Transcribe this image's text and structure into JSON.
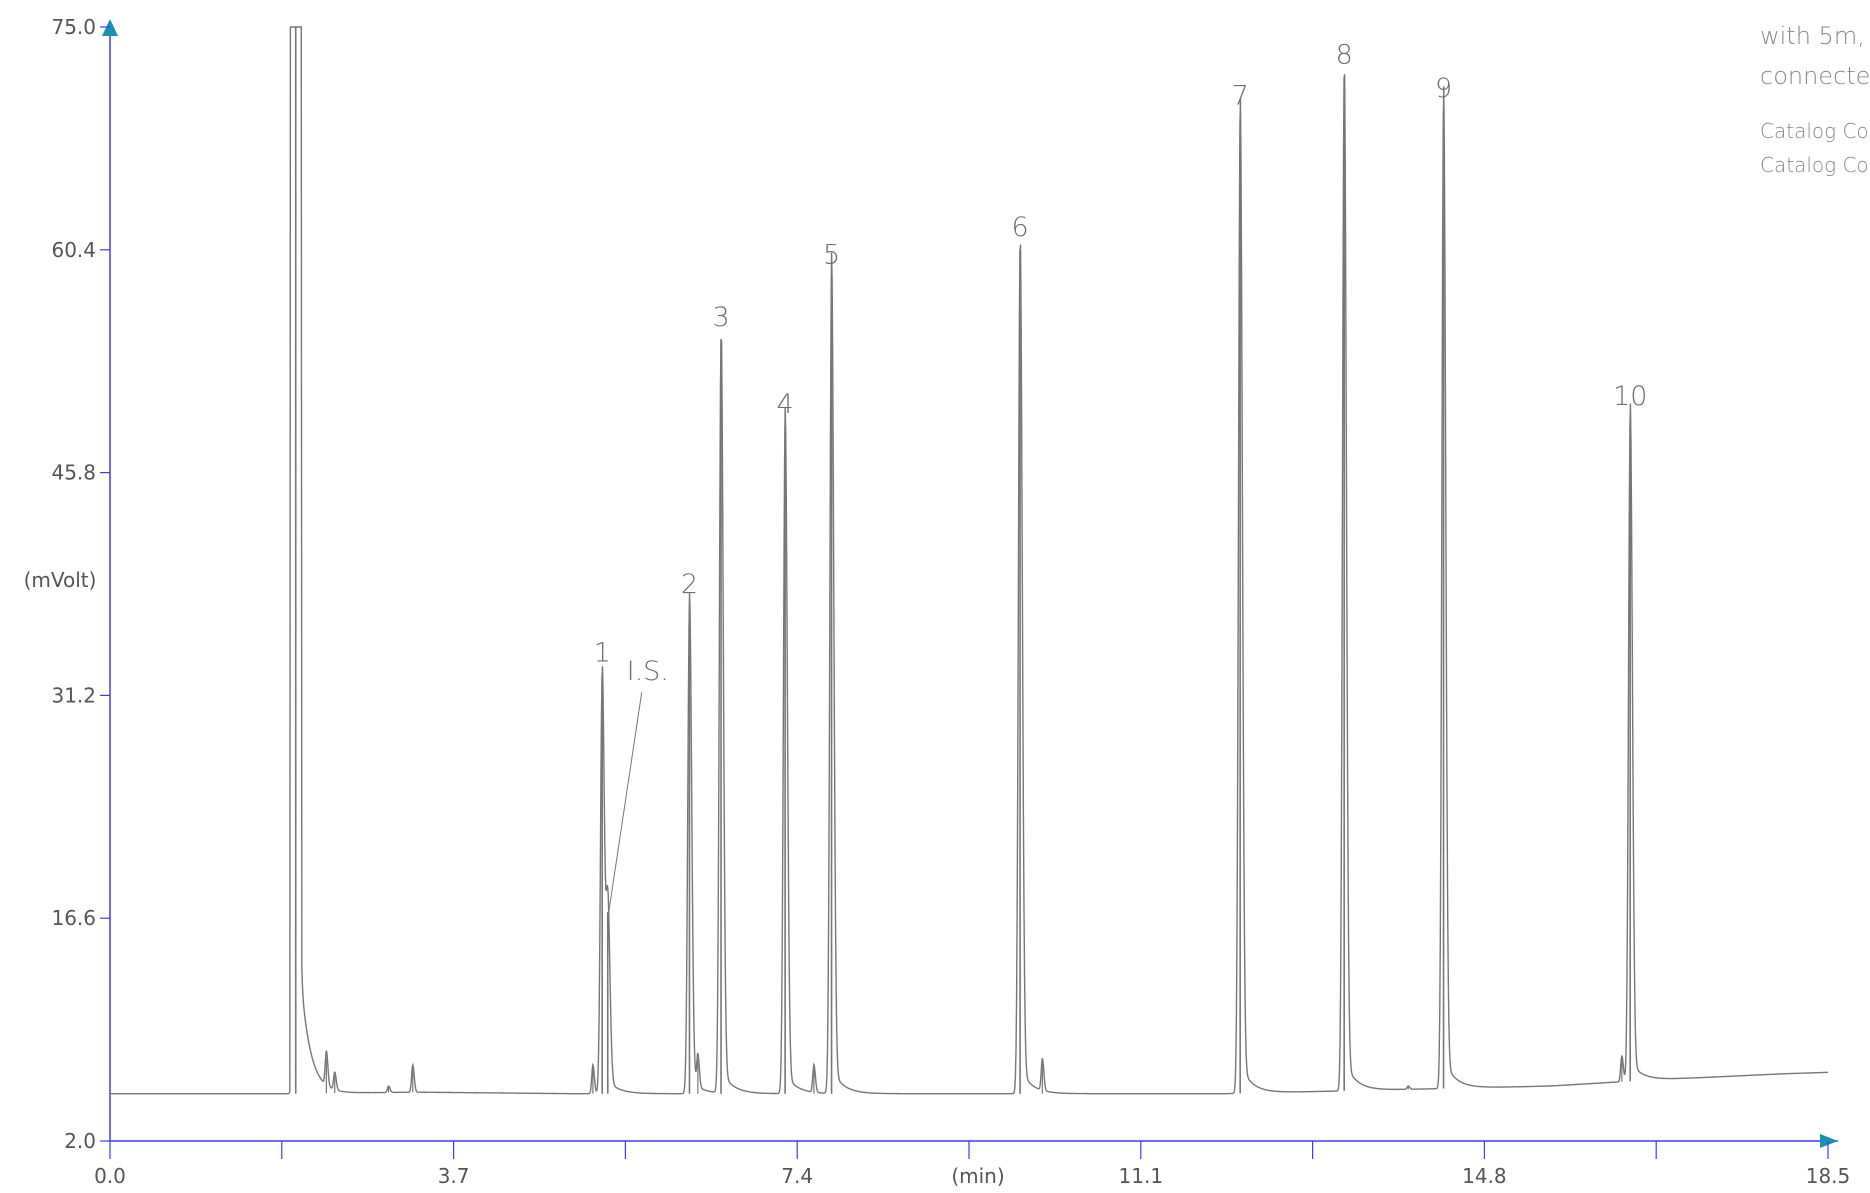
{
  "chart_data": {
    "type": "line",
    "xlabel": "(min)",
    "ylabel": "(mVolt)",
    "xlim": [
      0.0,
      18.5
    ],
    "ylim": [
      2.0,
      75.0
    ],
    "x_ticks": [
      "0.0",
      "3.7",
      "7.4",
      "11.1",
      "14.8",
      "18.5"
    ],
    "y_ticks": [
      "2.0",
      "16.6",
      "31.2",
      "45.8",
      "60.4",
      "75.0"
    ],
    "baseline": [
      [
        0.0,
        5.1
      ],
      [
        1.9,
        5.1
      ],
      [
        3.3,
        5.2
      ],
      [
        5.0,
        5.1
      ],
      [
        12.0,
        5.1
      ],
      [
        14.8,
        5.5
      ],
      [
        15.5,
        5.6
      ],
      [
        16.6,
        6.0
      ],
      [
        18.0,
        6.4
      ],
      [
        18.5,
        6.5
      ]
    ],
    "peaks": [
      {
        "label": "",
        "x": 2.0,
        "height": 75.0
      },
      {
        "label": "1",
        "x": 5.3,
        "height": 32.5
      },
      {
        "label": "I.S.",
        "x": 5.36,
        "height": 17.0
      },
      {
        "label": "2",
        "x": 6.24,
        "height": 37.0
      },
      {
        "label": "3",
        "x": 6.58,
        "height": 54.5
      },
      {
        "label": "4",
        "x": 7.27,
        "height": 48.8
      },
      {
        "label": "5",
        "x": 7.77,
        "height": 58.6
      },
      {
        "label": "6",
        "x": 9.8,
        "height": 60.4
      },
      {
        "label": "7",
        "x": 12.17,
        "height": 69.0
      },
      {
        "label": "8",
        "x": 13.29,
        "height": 71.7
      },
      {
        "label": "9",
        "x": 14.36,
        "height": 69.5
      },
      {
        "label": "10",
        "x": 16.37,
        "height": 49.3
      }
    ],
    "minor_peaks": [
      {
        "x": 2.33,
        "height": 7.4
      },
      {
        "x": 2.42,
        "height": 6.3
      },
      {
        "x": 3.0,
        "height": 5.6
      },
      {
        "x": 3.26,
        "height": 7.0
      },
      {
        "x": 5.2,
        "height": 7.0
      },
      {
        "x": 6.33,
        "height": 7.3
      },
      {
        "x": 7.58,
        "height": 6.9
      },
      {
        "x": 10.04,
        "height": 7.2
      },
      {
        "x": 13.98,
        "height": 5.6
      },
      {
        "x": 16.28,
        "height": 7.6
      }
    ]
  },
  "side_note": {
    "line1": "with 5m,",
    "line2": "connecte",
    "catalog1": "Catalog Co",
    "catalog2": "Catalog Co"
  },
  "colors": {
    "axis": "#3b3bff",
    "trace": "#777777",
    "arrow": "#1a8fb0"
  }
}
